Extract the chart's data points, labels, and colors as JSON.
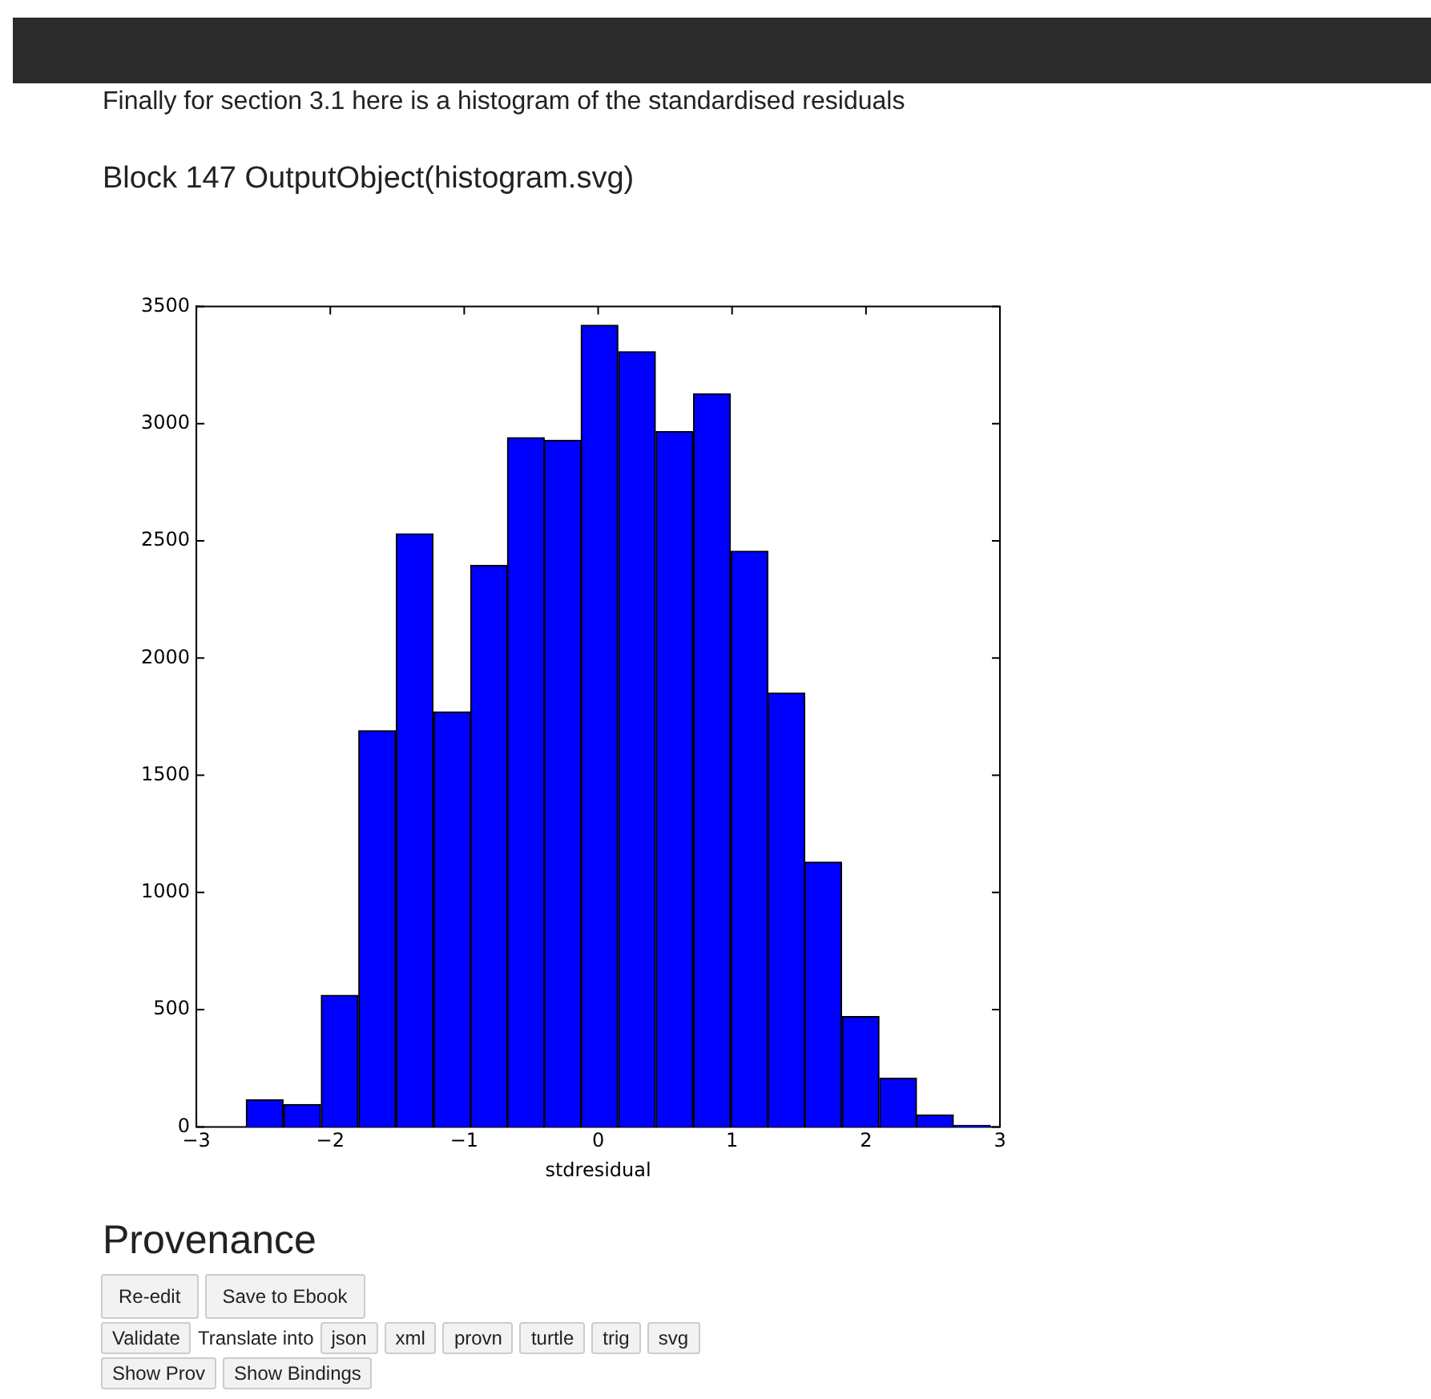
{
  "chart_data": {
    "type": "histogram",
    "title": "Finally for section 3.1 here is a histogram of the standardised residuals",
    "subtitle": "Block 147 OutputObject(histogram.svg)",
    "xlabel": "stdresidual",
    "bins": [
      -2.63,
      -2.35,
      -2.07,
      -1.79,
      -1.51,
      -1.23,
      -0.95,
      -0.68,
      -0.4,
      -0.13,
      0.15,
      0.43,
      0.71,
      0.99,
      1.27,
      1.54,
      1.82,
      2.1,
      2.38,
      2.65,
      2.93
    ],
    "values": [
      115,
      96,
      561,
      1690,
      2530,
      1770,
      2395,
      2940,
      2929,
      3420,
      3307,
      2966,
      3127,
      2456,
      1851,
      1130,
      471,
      208,
      51,
      7
    ],
    "color": "#0000ff",
    "xlim": [
      -3,
      3
    ],
    "xticks": [
      {
        "value": -3,
        "label": "−3"
      },
      {
        "value": -2,
        "label": "−2"
      },
      {
        "value": -1,
        "label": "−1"
      },
      0,
      1,
      2,
      3
    ],
    "ylim": [
      0,
      3500
    ],
    "yticks": [
      0,
      500,
      1000,
      1500,
      2000,
      2500,
      3000,
      3500
    ],
    "grid": false,
    "legend": false,
    "annotations": [
      "Provenance",
      "Re-edit",
      "Save to Ebook",
      "Validate",
      "Translate into",
      "json",
      "xml",
      "provn",
      "turtle",
      "trig",
      "svg",
      "Show Prov",
      "Show Bindings"
    ]
  }
}
